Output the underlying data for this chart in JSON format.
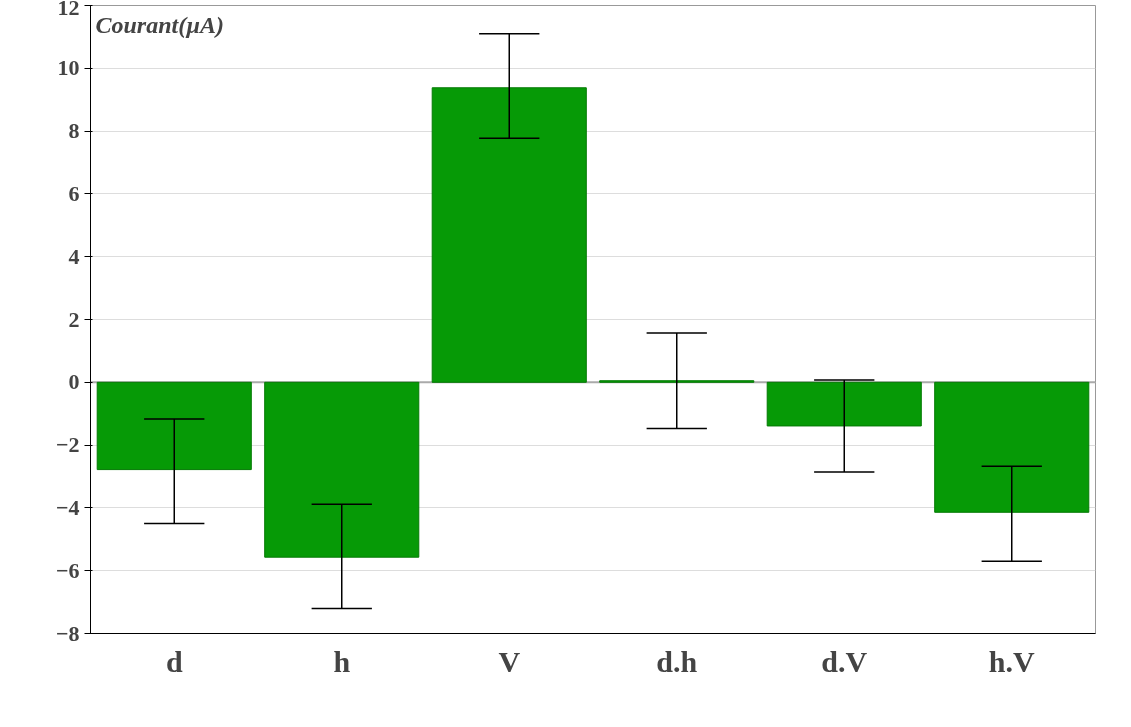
{
  "chart_data": {
    "type": "bar",
    "ylabel": "Courant(µA)",
    "categories": [
      "d",
      "h",
      "V",
      "d.h",
      "d.V",
      "h.V"
    ],
    "values": [
      -2.78,
      -5.57,
      9.38,
      0.05,
      -1.39,
      -4.14
    ],
    "errors": [
      [
        -4.5,
        -1.17
      ],
      [
        -7.2,
        -3.88
      ],
      [
        7.77,
        11.1
      ],
      [
        -1.47,
        1.57
      ],
      [
        -2.86,
        0.07
      ],
      [
        -5.7,
        -2.67
      ]
    ],
    "color": "#069a06",
    "ylim": [
      -8,
      12
    ],
    "yticks": [
      -8,
      -6,
      -4,
      -2,
      0,
      2,
      4,
      6,
      8,
      10,
      12
    ],
    "grid": "y"
  }
}
